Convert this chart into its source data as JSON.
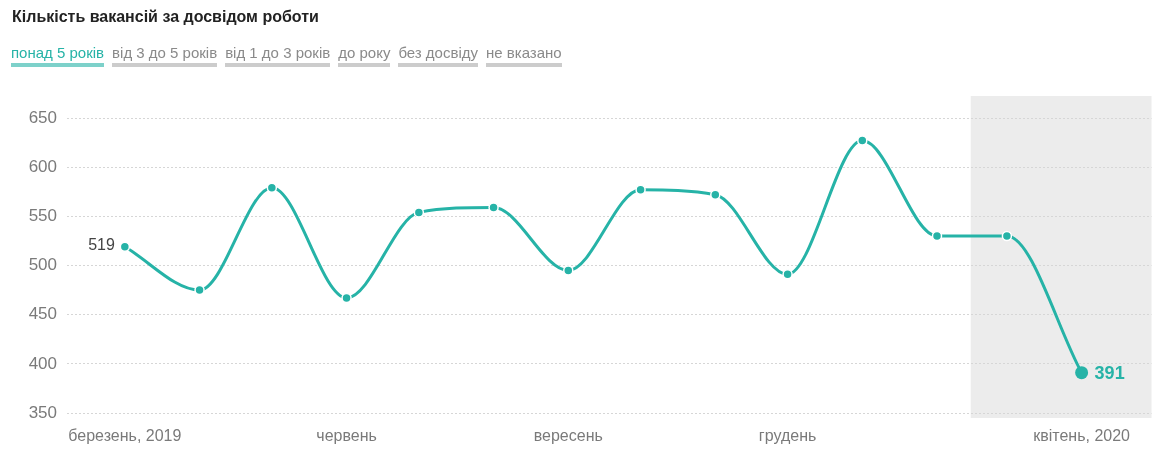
{
  "chart_data": {
    "type": "line",
    "title": "Кількість вакансій за досвідом роботи",
    "x": [
      "2019-03",
      "2019-04",
      "2019-05",
      "2019-06",
      "2019-07",
      "2019-08",
      "2019-09",
      "2019-10",
      "2019-11",
      "2019-12",
      "2020-01",
      "2020-02",
      "2020-03",
      "2020-04"
    ],
    "series": [
      {
        "name": "понад 5 років",
        "color": "#26b3a7",
        "values": [
          519,
          475,
          579,
          467,
          554,
          559,
          495,
          577,
          572,
          491,
          627,
          530,
          530,
          391
        ],
        "value_labels": [
          "519",
          null,
          null,
          null,
          null,
          null,
          null,
          null,
          null,
          null,
          null,
          null,
          null,
          "391"
        ]
      }
    ],
    "xlim": [
      "2019-02-05",
      "2020-04-30"
    ],
    "xticks": [
      {
        "value": "2019-03",
        "label": "березень, 2019"
      },
      {
        "value": "2019-06",
        "label": "червень"
      },
      {
        "value": "2019-09",
        "label": "вересень"
      },
      {
        "value": "2019-12",
        "label": "грудень"
      },
      {
        "value": "2020-04",
        "label": "квітень, 2020"
      }
    ],
    "ylim": [
      350,
      650
    ],
    "yticks": [
      350,
      400,
      450,
      500,
      550,
      600,
      650
    ],
    "grid": "y",
    "legend": "top left",
    "marker": "circle",
    "bands": [
      {
        "axis": "x",
        "from": "2020-02-15",
        "to": "2020-04-30",
        "color": "#ececec"
      }
    ],
    "annotations": [
      "від 3 до 5 років",
      "від 1 до 3 років",
      "до року",
      "без досвіду",
      "не вказано"
    ]
  }
}
